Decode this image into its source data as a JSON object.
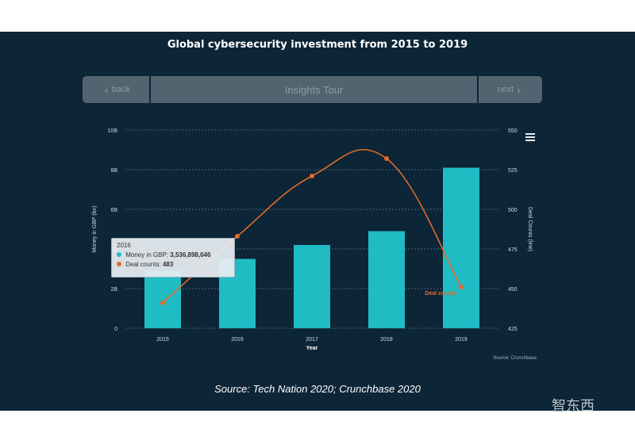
{
  "title": "Global cybersecurity investment from 2015 to 2019",
  "nav": {
    "back_label": "back",
    "center_label": "Insights Tour",
    "next_label": "next"
  },
  "tooltip": {
    "header": "2016",
    "money_label": "Money in GBP:",
    "money_value": "3,536,898,646",
    "deal_label": "Deal counts:",
    "deal_value": "483"
  },
  "source_small": "Source: Crunchbase",
  "source_main": "Source: Tech Nation 2020; Crunchbase 2020",
  "watermark": "智东西",
  "colors": {
    "background": "#0c2537",
    "bar": "#1fbcc4",
    "line": "#e36a2b",
    "grid": "#4a6070"
  },
  "chart_data": {
    "type": "bar+line",
    "categories": [
      "2015",
      "2016",
      "2017",
      "2018",
      "2019"
    ],
    "xlabel": "Year",
    "grid": true,
    "series": [
      {
        "name": "Money in GBP",
        "type": "bar",
        "axis": "left",
        "values": [
          2.9,
          3.5,
          4.2,
          4.9,
          8.1
        ],
        "color": "#1fbcc4"
      },
      {
        "name": "Deal counts",
        "type": "line",
        "axis": "right",
        "values": [
          441,
          483,
          521,
          532,
          451
        ],
        "color": "#e36a2b"
      }
    ],
    "y_left": {
      "label": "Money in GBP (bn)",
      "ticks": [
        "0",
        "2B",
        "4B",
        "6B",
        "8B",
        "10B"
      ],
      "range": [
        0,
        10
      ]
    },
    "y_right": {
      "label": "Deal Counts (line)",
      "ticks": [
        "425",
        "450",
        "475",
        "500",
        "525",
        "550"
      ],
      "range": [
        425,
        550
      ]
    },
    "annotation": "Deal counts"
  }
}
